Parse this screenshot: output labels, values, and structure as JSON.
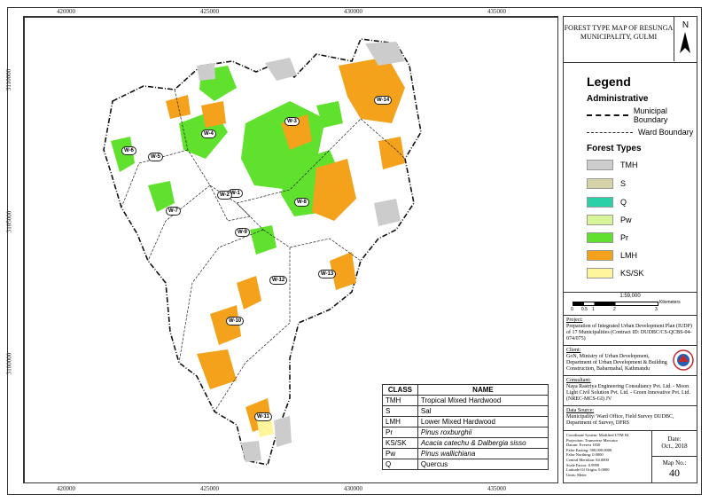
{
  "map": {
    "x_ticks": [
      "420000",
      "425000",
      "430000",
      "435000"
    ],
    "y_ticks": [
      "3110000",
      "3105000",
      "3100000"
    ],
    "wards": [
      "W-1",
      "W-2",
      "W-3",
      "W-4",
      "W-5",
      "W-6",
      "W-7",
      "W-8",
      "W-9",
      "W-10",
      "W-11",
      "W-12",
      "W-13",
      "W-14"
    ]
  },
  "panel": {
    "title": "FOREST TYPE MAP OF RESUNGA MUNICIPALITY, GULMI",
    "north_label": "N",
    "legend_title": "Legend",
    "admin_title": "Administrative",
    "municipal_boundary": "Municipal Boundary",
    "ward_boundary": "Ward Boundary",
    "forest_title": "Forest Types",
    "forest_types": [
      {
        "label": "TMH",
        "color": "#cccccc"
      },
      {
        "label": "S",
        "color": "#d6d3a8"
      },
      {
        "label": "Q",
        "color": "#2ad1a8"
      },
      {
        "label": "Pw",
        "color": "#d9f59a"
      },
      {
        "label": "Pr",
        "color": "#5fe12d"
      },
      {
        "label": "LMH",
        "color": "#f4a11c"
      },
      {
        "label": "KS/SK",
        "color": "#fff59a"
      }
    ],
    "scale_ratio": "1:59,000",
    "scale_ticks": [
      "0",
      "0.5",
      "1",
      "2",
      "3"
    ],
    "scale_unit": "Kilometers",
    "project_h": "Project:",
    "project": "Preparation of Integrated Urban Development Plan (IUDP) of 17 Municipalities (Contract ID: DUDBC/CS-QCBS-04-074/075)",
    "client_h": "Client:",
    "client": "GoN, Ministry of Urban Development, Department of Urban Development & Building Construction, Babarmahal, Kathmandu",
    "consultant_h": "Consultant:",
    "consultant": "Naya Rastriya Engineering Consultancy Pvt. Ltd. - Moon Light Civil Solution Pvt. Ltd. - Green Innovative Pvt. Ltd. (NREC-MCS-GI) JV",
    "source_h": "Data Source:",
    "source": "Municipality/ Ward Office, Field Survey DUDBC, Department of Survey, DFRS",
    "coords": [
      "Coordinate System: Modified UTM 84",
      "Projection: Transverse Mercator",
      "Datum: Everest 1830",
      "False Easting: 500,000.0000",
      "False Northing: 0.0000",
      "Central Meridian: 84.0000",
      "Scale Factor: 0.9999",
      "Latitude Of Origin: 0.0000",
      "Units: Meter"
    ],
    "date_label": "Date:",
    "date": "Oct., 2018",
    "mapno_label": "Map No.:",
    "mapno": "40"
  },
  "class_table": {
    "headers": [
      "CLASS",
      "NAME"
    ],
    "rows": [
      [
        "TMH",
        "Tropical Mixed Hardwood"
      ],
      [
        "S",
        "Sal"
      ],
      [
        "LMH",
        "Lower Mixed Hardwood"
      ],
      [
        "Pr",
        "Pinus roxburghii"
      ],
      [
        "KS/SK",
        "Acacia catechu & Dalbergia sisso"
      ],
      [
        "Pw",
        "Pinus wallichiana"
      ],
      [
        "Q",
        "Quercus"
      ]
    ]
  }
}
